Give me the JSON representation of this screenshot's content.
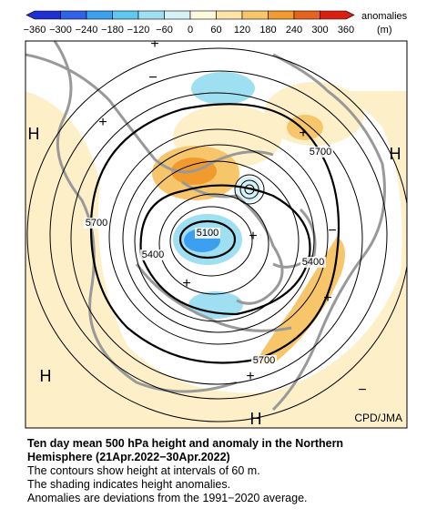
{
  "colorbar": {
    "colors": [
      "#1f2fd0",
      "#2f62e6",
      "#3d9ff0",
      "#5fc8f2",
      "#9fdff2",
      "#d6f2f7",
      "#fff8dc",
      "#fde3a8",
      "#f8c66a",
      "#f19b2e",
      "#e7611f",
      "#d81f12"
    ],
    "ticks": [
      "−360",
      "−300",
      "−240",
      "−180",
      "−120",
      "−60",
      "0",
      "60",
      "120",
      "180",
      "240",
      "300",
      "360"
    ],
    "title": "anomalies",
    "unit": "(m)"
  },
  "map": {
    "contour_labels": [
      "5700",
      "5700",
      "5700",
      "5400",
      "5400",
      "5100"
    ],
    "highs": [
      "H",
      "H",
      "H",
      "H"
    ],
    "plus_marks": [
      "+",
      "+",
      "+",
      "+",
      "+",
      "+",
      "+"
    ],
    "minus_marks": [
      "−",
      "−",
      "−"
    ],
    "credit": "CPD/JMA"
  },
  "caption": {
    "title_lines": [
      "Ten day mean 500 hPa height and anomaly in the Northern",
      "Hemisphere (21Apr.2022−30Apr.2022)"
    ],
    "lines": [
      "The contours show height at intervals of 60 m.",
      "The shading indicates height anomalies.",
      "Anomalies are deviations from the 1991−2020 average."
    ]
  }
}
